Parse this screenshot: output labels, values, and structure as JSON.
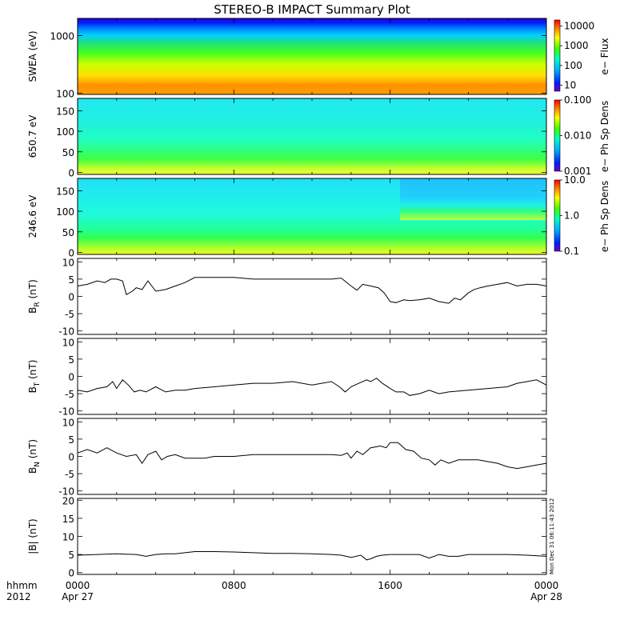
{
  "title": "STEREO-B IMPACT Summary Plot",
  "stamp": "Mon Dec 31 06:11:43 2012",
  "x_axis": {
    "row1_label": "hhmm",
    "row2_label": "2012",
    "ticks": [
      {
        "hours": 0,
        "time": "0000",
        "date": "Apr 27"
      },
      {
        "hours": 8,
        "time": "0800",
        "date": ""
      },
      {
        "hours": 16,
        "time": "1600",
        "date": ""
      },
      {
        "hours": 24,
        "time": "0000",
        "date": "Apr 28"
      }
    ]
  },
  "colors": {
    "line": "#000000"
  },
  "chart_data": [
    {
      "type": "heatmap",
      "ylabel": "SWEA (eV)",
      "yscale": "log",
      "ylim": [
        95,
        2000
      ],
      "yticks": [
        "100",
        "1000"
      ],
      "colorbar": {
        "label": "e− Flux",
        "scale": "log",
        "ticks": [
          "10",
          "100",
          "1000",
          "10000"
        ],
        "range": [
          5,
          20000
        ]
      },
      "description": "Electron flux spectrogram: red/orange near 100 eV, yellow to green mid-range, blue to violet above ~1500 eV."
    },
    {
      "type": "heatmap",
      "ylabel": "650.7 eV",
      "ylim": [
        -5,
        180
      ],
      "yticks": [
        "0",
        "50",
        "100",
        "150"
      ],
      "colorbar": {
        "label": "e− Ph Sp Dens",
        "scale": "log",
        "ticks": [
          "0.001",
          "0.010",
          "0.100"
        ],
        "range": [
          0.001,
          0.1
        ]
      },
      "description": "Pitch-angle distribution: yellow/green at low angles, cyan at high angles."
    },
    {
      "type": "heatmap",
      "ylabel": "246.6 eV",
      "ylim": [
        -5,
        180
      ],
      "yticks": [
        "0",
        "50",
        "100",
        "150"
      ],
      "colorbar": {
        "label": "e− Ph Sp Dens",
        "scale": "log",
        "ticks": [
          "0.1",
          "1.0",
          "10.0"
        ],
        "range": [
          0.1,
          10
        ]
      },
      "description": "Pitch-angle distribution: yellow/green at low angles, cyan elsewhere, bluer after 1700."
    },
    {
      "type": "line",
      "ylabel": "B_R (nT)",
      "ylabel_main": "B",
      "ylabel_sub": "R",
      "ylabel_unit": " (nT)",
      "ylim": [
        -11,
        11
      ],
      "yticks": [
        -10,
        -5,
        0,
        5,
        10
      ],
      "x": [
        0,
        0.5,
        1,
        1.4,
        1.7,
        2,
        2.3,
        2.5,
        2.8,
        3,
        3.3,
        3.6,
        4,
        4.5,
        5,
        5.5,
        6,
        7,
        8,
        9,
        10,
        11,
        12,
        13,
        13.5,
        14,
        14.3,
        14.6,
        15,
        15.4,
        15.7,
        16,
        16.3,
        16.7,
        17,
        17.5,
        18,
        18.5,
        19,
        19.3,
        19.6,
        20,
        20.3,
        20.6,
        21,
        21.5,
        22,
        22.5,
        23,
        23.5,
        24
      ],
      "y": [
        3,
        3.5,
        4.5,
        4,
        5,
        5,
        4.5,
        0.5,
        1.5,
        2.5,
        2,
        4.5,
        1.5,
        2,
        3,
        4,
        5.5,
        5.5,
        5.5,
        5,
        5,
        5,
        5,
        5,
        5.3,
        3,
        1.8,
        3.5,
        3,
        2.5,
        1,
        -1.5,
        -1.8,
        -1,
        -1.2,
        -1,
        -0.5,
        -1.5,
        -2,
        -0.5,
        -1,
        1,
        2,
        2.5,
        3,
        3.5,
        4,
        3,
        3.5,
        3.5,
        3
      ]
    },
    {
      "type": "line",
      "ylabel": "B_T (nT)",
      "ylabel_main": "B",
      "ylabel_sub": "T",
      "ylabel_unit": " (nT)",
      "ylim": [
        -11,
        11
      ],
      "yticks": [
        -10,
        -5,
        0,
        5,
        10
      ],
      "x": [
        0,
        0.5,
        1,
        1.5,
        1.8,
        2,
        2.3,
        2.6,
        2.9,
        3.2,
        3.5,
        4,
        4.5,
        5,
        5.5,
        6,
        7,
        8,
        9,
        10,
        11,
        12,
        13,
        13.4,
        13.7,
        14,
        14.4,
        14.8,
        15,
        15.3,
        15.6,
        16,
        16.3,
        16.7,
        17,
        17.5,
        18,
        18.5,
        19,
        20,
        21,
        22,
        22.5,
        23,
        23.5,
        24
      ],
      "y": [
        -4,
        -4.5,
        -3.5,
        -3,
        -1.5,
        -3.5,
        -1,
        -2.5,
        -4.5,
        -4,
        -4.5,
        -3,
        -4.5,
        -4,
        -4,
        -3.5,
        -3,
        -2.5,
        -2,
        -2,
        -1.5,
        -2.5,
        -1.5,
        -3,
        -4.5,
        -3,
        -2,
        -1,
        -1.5,
        -0.5,
        -2,
        -3.5,
        -4.5,
        -4.5,
        -5.5,
        -5,
        -4,
        -5,
        -4.5,
        -4,
        -3.5,
        -3,
        -2,
        -1.5,
        -1,
        -2.5
      ]
    },
    {
      "type": "line",
      "ylabel": "B_N (nT)",
      "ylabel_main": "B",
      "ylabel_sub": "N",
      "ylabel_unit": " (nT)",
      "ylim": [
        -11,
        11
      ],
      "yticks": [
        -10,
        -5,
        0,
        5,
        10
      ],
      "x": [
        0,
        0.5,
        1,
        1.5,
        2,
        2.5,
        3,
        3.3,
        3.6,
        4,
        4.3,
        4.6,
        5,
        5.5,
        6,
        6.5,
        7,
        8,
        9,
        10,
        11,
        12,
        13,
        13.5,
        13.8,
        14,
        14.3,
        14.6,
        15,
        15.5,
        15.8,
        16,
        16.4,
        16.8,
        17.2,
        17.6,
        18,
        18.3,
        18.6,
        19,
        19.5,
        20,
        20.5,
        21,
        21.5,
        22,
        22.5,
        23,
        23.5,
        24
      ],
      "y": [
        1,
        2,
        1,
        2.5,
        1,
        0,
        0.5,
        -2,
        0.5,
        1.5,
        -1,
        0,
        0.5,
        -0.5,
        -0.5,
        -0.5,
        0,
        0,
        0.5,
        0.5,
        0.5,
        0.5,
        0.5,
        0.3,
        1,
        -0.5,
        1.5,
        0.5,
        2.5,
        3,
        2.5,
        4,
        4,
        2,
        1.5,
        -0.5,
        -1,
        -2.5,
        -1,
        -2,
        -1,
        -1,
        -1,
        -1.5,
        -2,
        -3,
        -3.5,
        -3,
        -2.5,
        -2
      ]
    },
    {
      "type": "line",
      "ylabel": "|B| (nT)",
      "ylabel_main": "|B|",
      "ylabel_sub": "",
      "ylabel_unit": " (nT)",
      "ylim": [
        -0.5,
        20.5
      ],
      "yticks": [
        0,
        5,
        10,
        15,
        20
      ],
      "x": [
        0,
        1,
        2,
        2.5,
        3,
        3.5,
        4,
        4.5,
        5,
        6,
        7,
        8,
        9,
        10,
        11,
        12,
        13,
        13.5,
        14,
        14.5,
        14.8,
        15,
        15.3,
        15.6,
        16,
        17,
        17.5,
        18,
        18.5,
        19,
        19.5,
        20,
        21,
        22,
        23,
        24
      ],
      "y": [
        4.8,
        5,
        5.2,
        5.1,
        5,
        4.5,
        5,
        5.2,
        5.2,
        5.8,
        5.8,
        5.7,
        5.5,
        5.3,
        5.3,
        5.2,
        5,
        4.8,
        4.2,
        4.8,
        3.5,
        3.8,
        4.5,
        4.8,
        5,
        5,
        5,
        4,
        5,
        4.5,
        4.5,
        5,
        5,
        5,
        4.8,
        4.5
      ]
    }
  ]
}
